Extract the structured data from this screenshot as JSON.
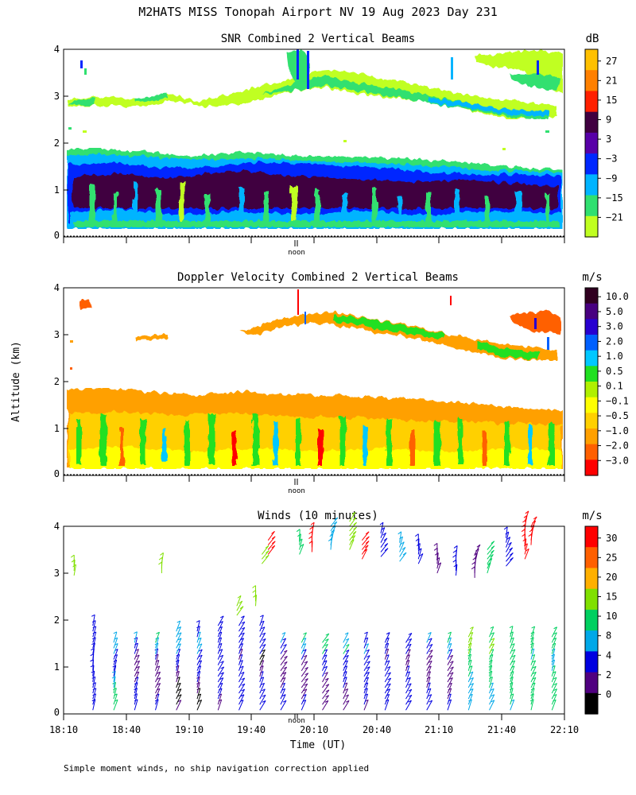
{
  "figure": {
    "title": "M2HATS MISS Tonopah Airport NV  19 Aug 2023 Day 231",
    "y_label": "Altitude (km)",
    "x_label": "Time (UT)",
    "footnote": "Simple moment winds, no ship navigation correction applied",
    "noon_label": "noon"
  },
  "chart_data": [
    {
      "type": "heatmap",
      "title": "SNR Combined 2 Vertical Beams",
      "ylabel": "Altitude (km)",
      "ylim": [
        0,
        4
      ],
      "xlim_hours_ut": [
        18.1667,
        22.1667
      ],
      "noon_ut_hours": 20.0,
      "y_ticks": [
        "0",
        "1",
        "2",
        "3",
        "4"
      ],
      "colorbar": {
        "unit": "dB",
        "tick_labels": [
          "27",
          "21",
          "15",
          "9",
          "3",
          "−3",
          "−9",
          "−15",
          "−21"
        ],
        "colors": [
          "#ffc000",
          "#ff8000",
          "#ff2000",
          "#400040",
          "#5800a8",
          "#0028ff",
          "#00b4ff",
          "#30e070",
          "#c0ff20"
        ]
      },
      "layers": [
        {
          "name": "lower boundary layer",
          "base_km": 0.15,
          "top_km": 1.85,
          "dominant_snr_db": "-3 to 3"
        },
        {
          "name": "elevated layer",
          "base_km": 2.3,
          "top_km": 4.0,
          "dominant_snr_db": "-15 to -21"
        }
      ]
    },
    {
      "type": "heatmap",
      "title": "Doppler Velocity Combined 2 Vertical Beams",
      "ylabel": "Altitude (km)",
      "ylim": [
        0,
        4
      ],
      "xlim_hours_ut": [
        18.1667,
        22.1667
      ],
      "y_ticks": [
        "0",
        "1",
        "2",
        "3",
        "4"
      ],
      "colorbar": {
        "unit": "m/s",
        "tick_labels": [
          "10.0",
          "5.0",
          "3.0",
          "2.0",
          "1.0",
          "0.5",
          "0.1",
          "−0.1",
          "−0.5",
          "−1.0",
          "−2.0",
          "−3.0"
        ],
        "colors": [
          "#300020",
          "#480080",
          "#2800d0",
          "#0060ff",
          "#00c8ff",
          "#20e020",
          "#b0f000",
          "#ffff00",
          "#ffd000",
          "#ffa000",
          "#ff6000",
          "#ff0000"
        ]
      },
      "layers": [
        {
          "name": "lower boundary layer",
          "base_km": 0.15,
          "top_km": 1.85,
          "dominant_velocity_ms": "-0.5 to -1.0"
        },
        {
          "name": "elevated layer",
          "base_km": 2.3,
          "top_km": 4.0,
          "dominant_velocity_ms": "-0.5 to -1.0"
        }
      ]
    },
    {
      "type": "scatter",
      "title": "Winds (10 minutes)",
      "ylabel": "Altitude (km)",
      "xlabel": "Time (UT)",
      "ylim": [
        0,
        4
      ],
      "xlim_hours_ut": [
        18.1667,
        22.1667
      ],
      "y_ticks": [
        "0",
        "1",
        "2",
        "3",
        "4"
      ],
      "x_ticks": [
        {
          "label": "18:10",
          "hour": 18.1667
        },
        {
          "label": "18:40",
          "hour": 18.6667
        },
        {
          "label": "19:10",
          "hour": 19.1667
        },
        {
          "label": "19:40",
          "hour": 19.6667
        },
        {
          "label": "20:10",
          "hour": 20.1667
        },
        {
          "label": "20:40",
          "hour": 20.6667
        },
        {
          "label": "21:10",
          "hour": 21.1667
        },
        {
          "label": "21:40",
          "hour": 21.6667
        },
        {
          "label": "22:10",
          "hour": 22.1667
        }
      ],
      "colorbar": {
        "unit": "m/s",
        "tick_labels": [
          "30",
          "25",
          "20",
          "15",
          "10",
          "8",
          "4",
          "2",
          "0"
        ],
        "colors": [
          "#ff0000",
          "#ff6000",
          "#ffb000",
          "#80e000",
          "#00d060",
          "#00a8e8",
          "#0000e0",
          "#500080",
          "#000000"
        ]
      },
      "profiles": [
        {
          "hour": 18.4,
          "top_km": 1.95,
          "speed_ms": 6,
          "dir_deg": 190
        },
        {
          "hour": 18.55,
          "top_km": 1.6,
          "speed_ms": 9,
          "dir_deg": 195
        },
        {
          "hour": 18.85,
          "top_km": 1.55,
          "speed_ms": 6,
          "dir_deg": 200
        },
        {
          "hour": 19.0,
          "top_km": 1.8,
          "speed_ms": 5,
          "dir_deg": 200
        },
        {
          "hour": 19.55,
          "top_km": 1.9,
          "speed_ms": 5,
          "dir_deg": 205
        },
        {
          "hour": 20.0,
          "top_km": 1.6,
          "speed_ms": 6,
          "dir_deg": 210
        },
        {
          "hour": 20.7,
          "top_km": 1.55,
          "speed_ms": 6,
          "dir_deg": 205
        },
        {
          "hour": 21.85,
          "top_km": 1.75,
          "speed_ms": 12,
          "dir_deg": 200
        }
      ]
    }
  ]
}
